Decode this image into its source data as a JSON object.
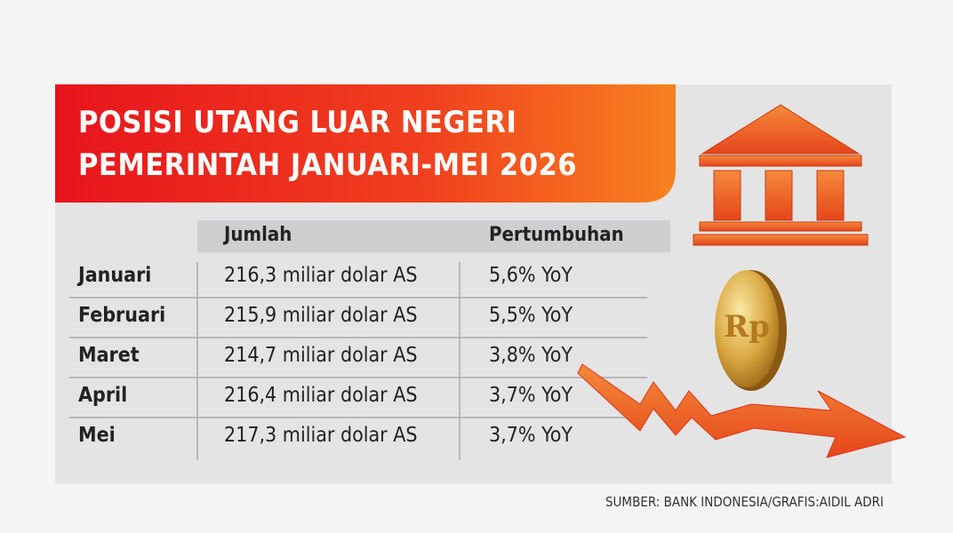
{
  "title_lines": [
    "POSISI UTANG LUAR NEGERI",
    "PEMERINTAH JANUARI-MEI 2026"
  ],
  "table": {
    "header": [
      "Jumlah",
      "Pertumbuhan"
    ],
    "rows": [
      [
        "Januari",
        "216,3 miliar dolar AS",
        "5,6% YoY"
      ],
      [
        "Februari",
        "215,9 miliar dolar AS",
        "5,5% YoY"
      ],
      [
        "Maret",
        "214,7 miliar dolar AS",
        "3,8% YoY"
      ],
      [
        "April",
        "216,4 miliar dolar AS",
        "3,7% YoY"
      ],
      [
        "Mei",
        "217,3 miliar dolar AS",
        "3,7% YoY"
      ]
    ]
  },
  "source": "SUMBER: BANK INDONESIA/GRAFIS:AIDIL ADRI"
}
